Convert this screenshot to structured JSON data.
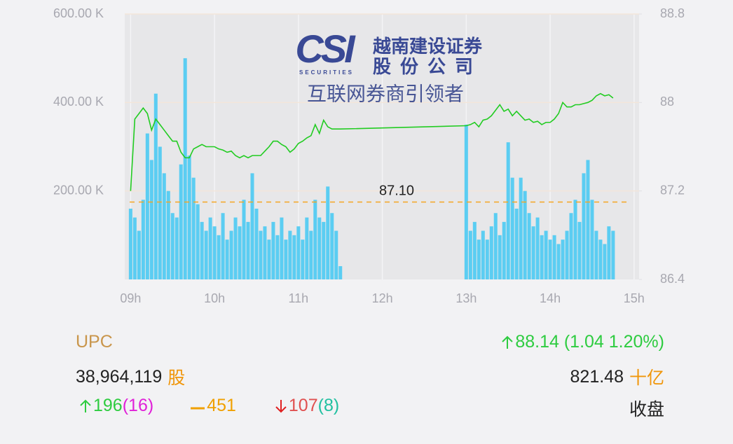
{
  "chart_data": {
    "type": "bar",
    "watermark": {
      "brand": "CSI",
      "brand_sub": "SECURITIES",
      "name_line1": "越南建设证券",
      "name_line2": "股份公司",
      "slogan": "互联网券商引领者"
    },
    "x": [
      9.0,
      9.05,
      9.1,
      9.15,
      9.2,
      9.25,
      9.3,
      9.35,
      9.4,
      9.45,
      9.5,
      9.55,
      9.6,
      9.65,
      9.7,
      9.75,
      9.8,
      9.85,
      9.9,
      9.95,
      10.0,
      10.05,
      10.1,
      10.15,
      10.2,
      10.25,
      10.3,
      10.35,
      10.4,
      10.45,
      10.5,
      10.55,
      10.6,
      10.65,
      10.7,
      10.75,
      10.8,
      10.85,
      10.9,
      10.95,
      11.0,
      11.05,
      11.1,
      11.15,
      11.2,
      11.25,
      11.3,
      11.35,
      11.4,
      11.45,
      11.5,
      13.0,
      13.05,
      13.1,
      13.15,
      13.2,
      13.25,
      13.3,
      13.35,
      13.4,
      13.45,
      13.5,
      13.55,
      13.6,
      13.65,
      13.7,
      13.75,
      13.8,
      13.85,
      13.9,
      13.95,
      14.0,
      14.05,
      14.1,
      14.15,
      14.2,
      14.25,
      14.3,
      14.35,
      14.4,
      14.45,
      14.5,
      14.55,
      14.6,
      14.65,
      14.7,
      14.75
    ],
    "series": [
      {
        "type": "bar",
        "axis": "y",
        "color": "#5bcdf2",
        "values": [
          160,
          140,
          110,
          180,
          330,
          270,
          420,
          300,
          240,
          200,
          150,
          140,
          260,
          500,
          280,
          230,
          170,
          130,
          110,
          140,
          120,
          100,
          150,
          90,
          110,
          140,
          120,
          180,
          130,
          240,
          160,
          110,
          120,
          90,
          130,
          100,
          140,
          90,
          110,
          100,
          120,
          90,
          140,
          110,
          180,
          140,
          130,
          210,
          150,
          110,
          30,
          350,
          110,
          130,
          90,
          110,
          90,
          120,
          150,
          100,
          130,
          310,
          230,
          160,
          230,
          200,
          150,
          120,
          140,
          100,
          110,
          90,
          100,
          80,
          90,
          110,
          150,
          180,
          130,
          240,
          270,
          180,
          110,
          90,
          80,
          120,
          110
        ]
      },
      {
        "type": "line",
        "axis": "y2",
        "color": "#22cc22",
        "values": [
          87.2,
          87.85,
          87.9,
          87.95,
          87.9,
          87.75,
          87.85,
          87.8,
          87.75,
          87.7,
          87.65,
          87.65,
          87.55,
          87.5,
          87.5,
          87.58,
          87.6,
          87.62,
          87.6,
          87.6,
          87.6,
          87.58,
          87.57,
          87.55,
          87.56,
          87.52,
          87.5,
          87.52,
          87.5,
          87.52,
          87.52,
          87.52,
          87.56,
          87.6,
          87.65,
          87.65,
          87.62,
          87.6,
          87.55,
          87.58,
          87.63,
          87.65,
          87.68,
          87.7,
          87.8,
          87.72,
          87.84,
          87.78,
          87.76,
          87.76,
          87.76,
          87.79,
          87.8,
          87.82,
          87.78,
          87.84,
          87.85,
          87.88,
          87.93,
          87.98,
          87.92,
          87.94,
          87.88,
          87.92,
          87.88,
          87.84,
          87.85,
          87.82,
          87.83,
          87.8,
          87.82,
          87.82,
          87.85,
          87.9,
          88.0,
          87.96,
          87.96,
          87.98,
          87.98,
          87.99,
          88.0,
          88.02,
          88.06,
          88.08,
          88.06,
          88.07,
          88.04
        ]
      }
    ],
    "xlim": [
      8.93,
      15.06
    ],
    "xticks": [
      {
        "value": 9,
        "label": "09h"
      },
      {
        "value": 10,
        "label": "10h"
      },
      {
        "value": 11,
        "label": "11h"
      },
      {
        "value": 12,
        "label": "12h"
      },
      {
        "value": 13,
        "label": "13h"
      },
      {
        "value": 14,
        "label": "14h"
      },
      {
        "value": 15,
        "label": "15h"
      }
    ],
    "ylim": [
      0,
      600
    ],
    "yticks": [
      {
        "value": 200,
        "label": "200.00 K"
      },
      {
        "value": 400,
        "label": "400.00 K"
      },
      {
        "value": 600,
        "label": "600.00 K"
      }
    ],
    "y2lim": [
      86.4,
      88.8
    ],
    "y2ticks": [
      86.4,
      87.2,
      88,
      88.8
    ],
    "reference_line": {
      "value": 87.1,
      "label": "87.10",
      "axis": "y2",
      "color": "#f5a623"
    },
    "grid": true,
    "info": {
      "index_name": "UPC",
      "volume": "38,964,119",
      "volume_unit": "股",
      "index_change": "88.14 (1.04 1.20%)",
      "value": "821.48",
      "value_unit": "十亿",
      "advances": "196",
      "advances_ceiling": "(16)",
      "unchanged": "451",
      "declines": "107",
      "declines_floor": "(8)",
      "status": "收盘"
    }
  }
}
